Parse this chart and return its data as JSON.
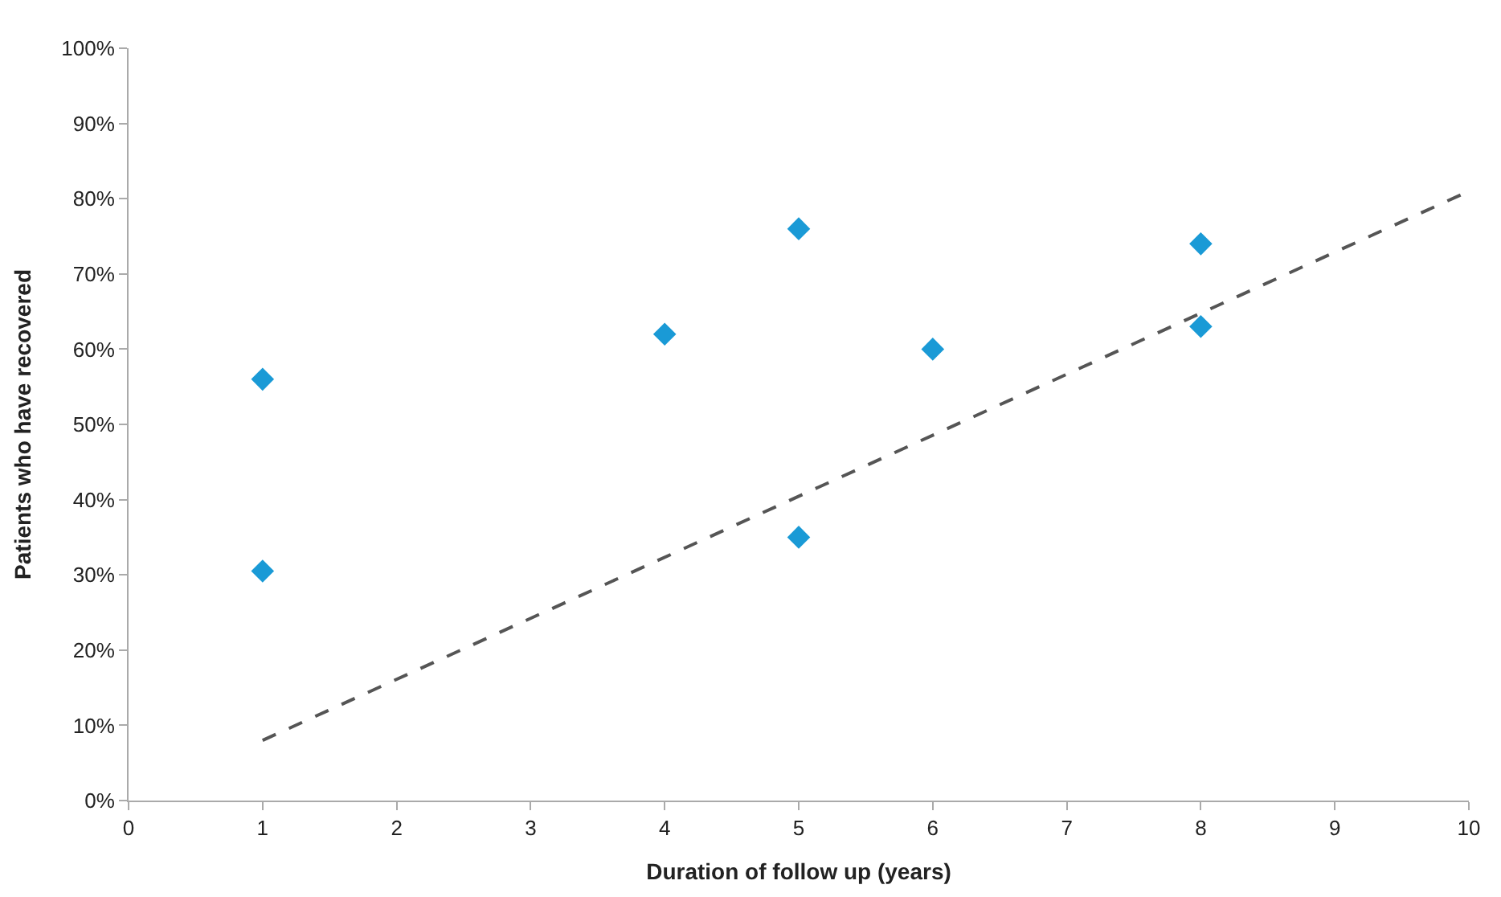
{
  "chart_data": {
    "type": "scatter",
    "xlabel": "Duration of follow up (years)",
    "ylabel": "Patients who have recovered",
    "xlim": [
      0,
      10
    ],
    "xticks": [
      0,
      1,
      2,
      3,
      4,
      5,
      6,
      7,
      8,
      9,
      10
    ],
    "ylim": [
      0,
      100
    ],
    "yticks": [
      {
        "value": 0,
        "label": "0%"
      },
      {
        "value": 10,
        "label": "10%"
      },
      {
        "value": 20,
        "label": "20%"
      },
      {
        "value": 30,
        "label": "30%"
      },
      {
        "value": 40,
        "label": "40%"
      },
      {
        "value": 50,
        "label": "50%"
      },
      {
        "value": 60,
        "label": "60%"
      },
      {
        "value": 70,
        "label": "70%"
      },
      {
        "value": 80,
        "label": "80%"
      },
      {
        "value": 90,
        "label": "90%"
      },
      {
        "value": 100,
        "label": "100%"
      }
    ],
    "series": [
      {
        "marker": "diamond",
        "color": "#1a9ad6",
        "x": [
          1,
          1,
          4,
          5,
          5,
          6,
          8,
          8
        ],
        "values": [
          56,
          30.5,
          62,
          76,
          35,
          60,
          74,
          63
        ]
      },
      {
        "type": "line",
        "line_style": "dashed",
        "marker": "none",
        "color": "#555555",
        "x": [
          1,
          10
        ],
        "values": [
          8,
          81
        ]
      }
    ]
  }
}
